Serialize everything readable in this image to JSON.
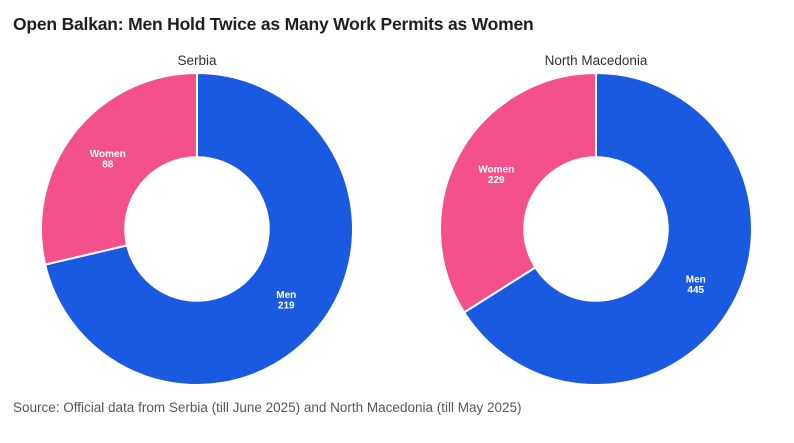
{
  "title": "Open Balkan: Men Hold Twice as Many Work Permits as Women",
  "source": "Source: Official data from Serbia (till June 2025) and North Macedonia (till May 2025)",
  "colors": {
    "men": "#1A5AE0",
    "women": "#F4508C",
    "title_text": "#1F1F1F",
    "subtitle_text": "#303030",
    "source_text": "#565656",
    "slice_label_text": "#FFFFFF",
    "background": "#FFFFFF"
  },
  "chart_data": [
    {
      "type": "pie",
      "title": "Serbia",
      "hole": 0.46,
      "start_angle": "top",
      "direction": "clockwise",
      "slices": [
        {
          "label": "Men",
          "value": 219,
          "color_key": "men"
        },
        {
          "label": "Women",
          "value": 88,
          "color_key": "women"
        }
      ]
    },
    {
      "type": "pie",
      "title": "North Macedonia",
      "hole": 0.46,
      "start_angle": "top",
      "direction": "clockwise",
      "slices": [
        {
          "label": "Men",
          "value": 445,
          "color_key": "men"
        },
        {
          "label": "Women",
          "value": 229,
          "color_key": "women"
        }
      ]
    }
  ]
}
